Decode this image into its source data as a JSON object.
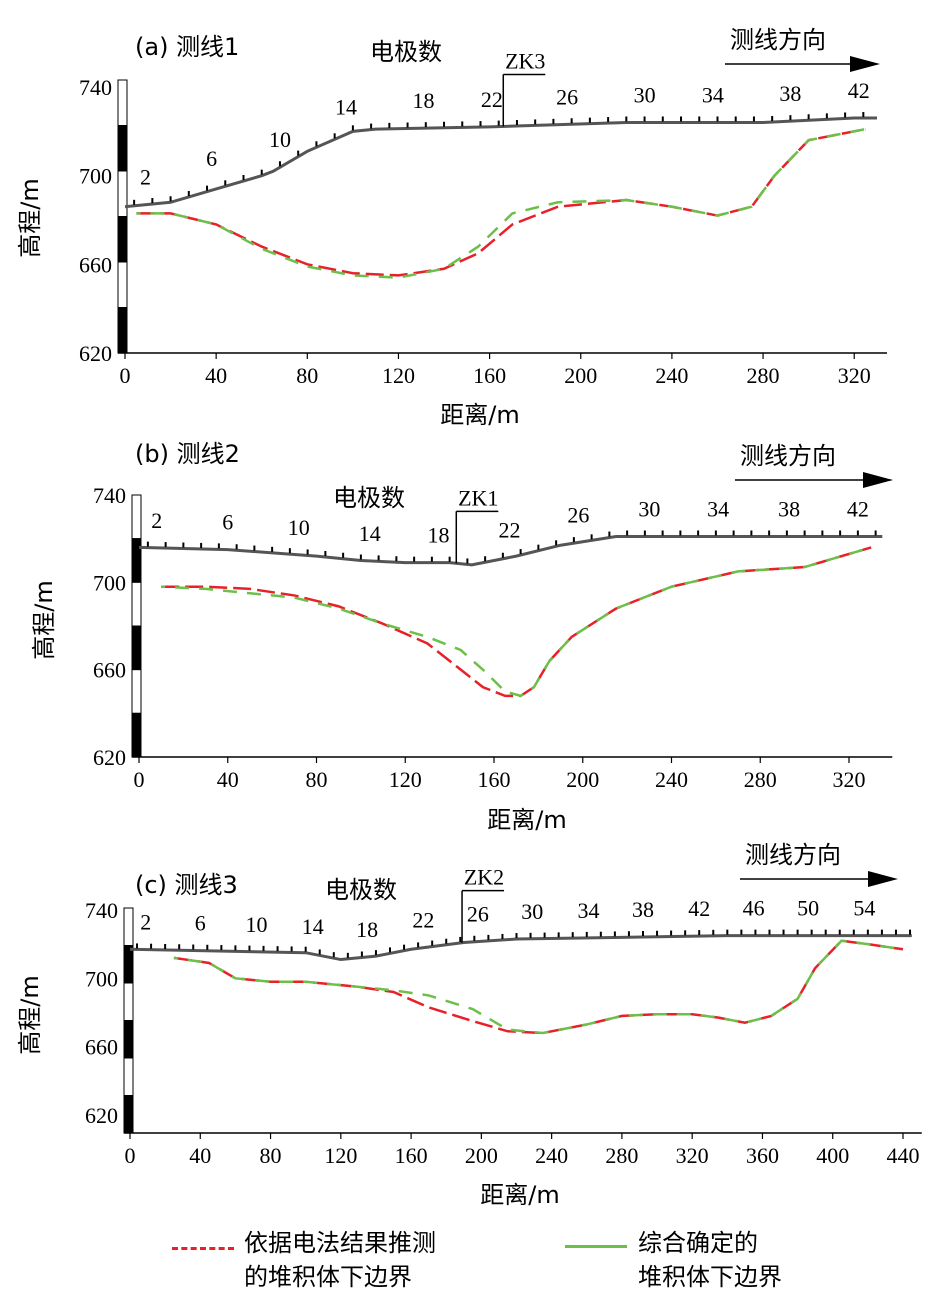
{
  "chart_data": [
    {
      "type": "line",
      "title": "(a) 测线1",
      "electrode_title": "电极数",
      "direction_label": "测线方向",
      "borehole": {
        "label": "ZK3",
        "x": 166
      },
      "xlabel": "距离/m",
      "ylabel": "高程/m",
      "xlim": [
        0,
        330
      ],
      "ylim": [
        620,
        740
      ],
      "xticks": [
        0,
        40,
        80,
        120,
        160,
        200,
        240,
        280,
        320
      ],
      "yticks": [
        620,
        660,
        700,
        740
      ],
      "electrodes": [
        {
          "label": "2",
          "x": 9
        },
        {
          "label": "6",
          "x": 38
        },
        {
          "label": "10",
          "x": 68
        },
        {
          "label": "14",
          "x": 97
        },
        {
          "label": "18",
          "x": 131
        },
        {
          "label": "22",
          "x": 161
        },
        {
          "label": "26",
          "x": 194
        },
        {
          "label": "30",
          "x": 228
        },
        {
          "label": "34",
          "x": 258
        },
        {
          "label": "38",
          "x": 292
        },
        {
          "label": "42",
          "x": 322
        }
      ],
      "surface": {
        "x": [
          0,
          20,
          40,
          60,
          65,
          80,
          100,
          110,
          160,
          220,
          280,
          320,
          330
        ],
        "y": [
          686,
          688,
          694,
          700,
          702,
          711,
          720,
          721,
          722,
          724,
          724,
          726,
          726
        ]
      },
      "series": [
        {
          "name": "依据电法结果推测的堆积体下边界",
          "x": [
            5,
            20,
            40,
            60,
            80,
            100,
            120,
            140,
            155,
            170,
            190,
            220,
            240,
            260,
            275,
            285,
            300,
            325
          ],
          "y": [
            683,
            683,
            678,
            668,
            660,
            656,
            655,
            658,
            665,
            678,
            686,
            689,
            686,
            682,
            686,
            700,
            716,
            721
          ]
        },
        {
          "name": "综合确定的堆积体下边界",
          "x": [
            5,
            20,
            40,
            60,
            80,
            100,
            120,
            140,
            155,
            170,
            190,
            220,
            240,
            260,
            275,
            285,
            300,
            325
          ],
          "y": [
            683,
            683,
            678,
            667,
            659,
            655,
            654,
            658,
            668,
            683,
            688,
            689,
            686,
            682,
            686,
            700,
            716,
            721
          ]
        }
      ]
    },
    {
      "type": "line",
      "title": "(b) 测线2",
      "electrode_title": "电极数",
      "direction_label": "测线方向",
      "borehole": {
        "label": "ZK1",
        "x": 143
      },
      "xlabel": "距离/m",
      "ylabel": "高程/m",
      "xlim": [
        0,
        335
      ],
      "ylim": [
        620,
        740
      ],
      "xticks": [
        0,
        40,
        80,
        120,
        160,
        200,
        240,
        280,
        320
      ],
      "yticks": [
        620,
        660,
        700,
        740
      ],
      "electrodes": [
        {
          "label": "2",
          "x": 8
        },
        {
          "label": "6",
          "x": 40
        },
        {
          "label": "10",
          "x": 72
        },
        {
          "label": "14",
          "x": 104
        },
        {
          "label": "18",
          "x": 135
        },
        {
          "label": "22",
          "x": 167
        },
        {
          "label": "26",
          "x": 198
        },
        {
          "label": "30",
          "x": 230
        },
        {
          "label": "34",
          "x": 261
        },
        {
          "label": "38",
          "x": 293
        },
        {
          "label": "42",
          "x": 324
        }
      ],
      "surface": {
        "x": [
          0,
          40,
          80,
          100,
          120,
          140,
          150,
          170,
          190,
          215,
          250,
          300,
          335
        ],
        "y": [
          716,
          715,
          712,
          710,
          709,
          709,
          708,
          712,
          717,
          721,
          721,
          721,
          721
        ]
      },
      "series": [
        {
          "name": "依据电法结果推测的堆积体下边界",
          "x": [
            10,
            30,
            50,
            70,
            90,
            110,
            130,
            145,
            155,
            165,
            172,
            178,
            185,
            195,
            215,
            240,
            270,
            300,
            330
          ],
          "y": [
            698,
            698,
            697,
            694,
            689,
            681,
            672,
            660,
            652,
            648,
            648,
            652,
            664,
            675,
            688,
            698,
            705,
            707,
            716
          ]
        },
        {
          "name": "综合确定的堆积体下边界",
          "x": [
            10,
            30,
            50,
            70,
            90,
            110,
            130,
            145,
            155,
            165,
            172,
            178,
            185,
            195,
            215,
            240,
            270,
            300,
            330
          ],
          "y": [
            698,
            697,
            695,
            693,
            688,
            681,
            675,
            669,
            660,
            650,
            648,
            652,
            664,
            675,
            688,
            698,
            705,
            707,
            716
          ]
        }
      ]
    },
    {
      "type": "line",
      "title": "(c) 测线3",
      "electrode_title": "电极数",
      "direction_label": "测线方向",
      "borehole": {
        "label": "ZK2",
        "x": 189
      },
      "xlabel": "距离/m",
      "ylabel": "高程/m",
      "xlim": [
        0,
        445
      ],
      "ylim": [
        610,
        740
      ],
      "xticks": [
        0,
        40,
        80,
        120,
        160,
        200,
        240,
        280,
        320,
        360,
        400,
        440
      ],
      "yticks": [
        620,
        660,
        700,
        740
      ],
      "electrodes": [
        {
          "label": "2",
          "x": 9
        },
        {
          "label": "6",
          "x": 40
        },
        {
          "label": "10",
          "x": 72
        },
        {
          "label": "14",
          "x": 104
        },
        {
          "label": "18",
          "x": 135
        },
        {
          "label": "22",
          "x": 167
        },
        {
          "label": "26",
          "x": 198
        },
        {
          "label": "30",
          "x": 229
        },
        {
          "label": "34",
          "x": 261
        },
        {
          "label": "38",
          "x": 292
        },
        {
          "label": "42",
          "x": 324
        },
        {
          "label": "46",
          "x": 355
        },
        {
          "label": "50",
          "x": 386
        },
        {
          "label": "54",
          "x": 418
        }
      ],
      "surface": {
        "x": [
          0,
          50,
          100,
          120,
          140,
          160,
          190,
          220,
          280,
          340,
          400,
          445
        ],
        "y": [
          717,
          716,
          715,
          711,
          713,
          717,
          721,
          723,
          724,
          725,
          725,
          725
        ]
      },
      "series": [
        {
          "name": "依据电法结果推测的堆积体下边界",
          "x": [
            25,
            45,
            60,
            80,
            100,
            130,
            150,
            170,
            195,
            215,
            235,
            260,
            280,
            300,
            320,
            335,
            350,
            365,
            380,
            390,
            405,
            420,
            440
          ],
          "y": [
            712,
            709,
            700,
            698,
            698,
            695,
            692,
            683,
            675,
            669,
            668,
            673,
            678,
            679,
            679,
            677,
            674,
            678,
            688,
            706,
            722,
            720,
            717
          ]
        },
        {
          "name": "综合确定的堆积体下边界",
          "x": [
            25,
            45,
            60,
            80,
            100,
            130,
            150,
            170,
            195,
            215,
            235,
            260,
            280,
            300,
            320,
            335,
            350,
            365,
            380,
            390,
            405,
            420,
            440
          ],
          "y": [
            712,
            709,
            700,
            698,
            698,
            695,
            693,
            690,
            682,
            670,
            668,
            673,
            678,
            679,
            679,
            677,
            674,
            678,
            688,
            706,
            722,
            720,
            717
          ]
        }
      ]
    }
  ],
  "legend": {
    "items": [
      {
        "line1": "依据电法结果推测",
        "line2": "的堆积体下边界",
        "color": "#e8202a",
        "style": "dashed"
      },
      {
        "line1": "综合确定的",
        "line2": "堆积体下边界",
        "color": "#6cc04a",
        "style": "solid"
      }
    ]
  }
}
